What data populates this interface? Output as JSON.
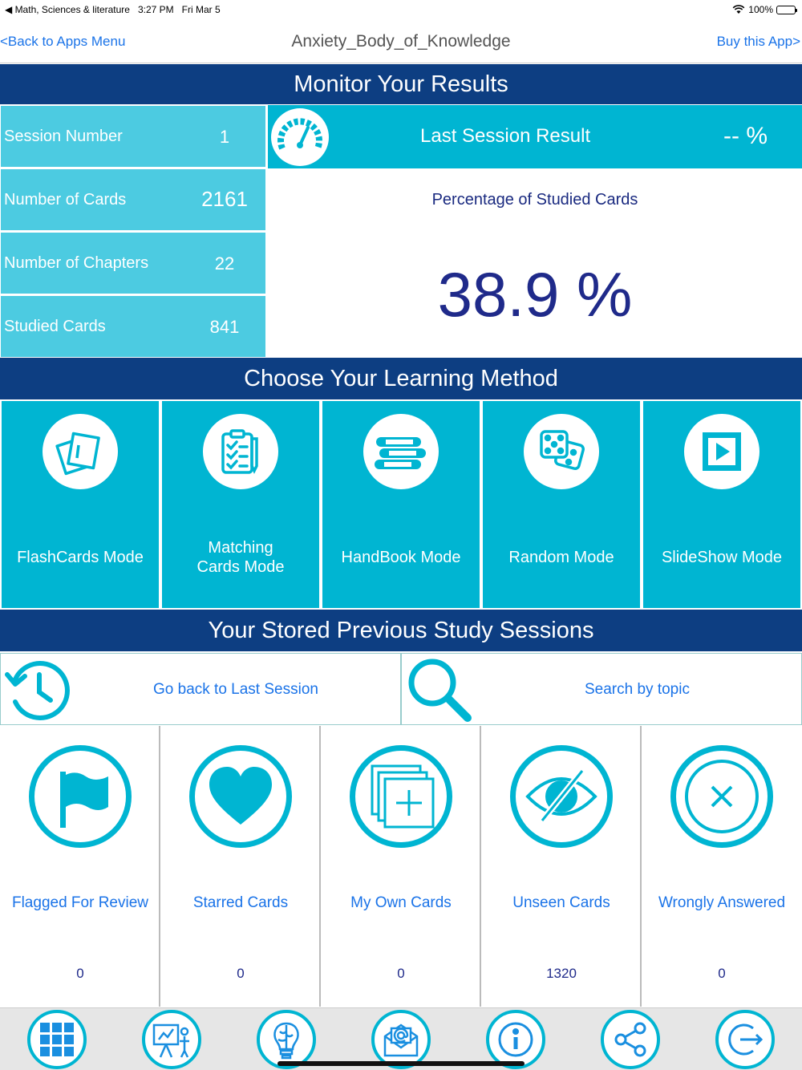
{
  "status_bar": {
    "back_app": "◀ Math, Sciences & literature",
    "time": "3:27 PM",
    "date": "Fri Mar 5",
    "battery": "100%"
  },
  "nav": {
    "back_label": "<Back to Apps Menu",
    "title": "Anxiety_Body_of_Knowledge",
    "buy_label": "Buy this App>"
  },
  "monitor": {
    "header": "Monitor Your Results",
    "stats": [
      {
        "label": "Session Number",
        "value": "1"
      },
      {
        "label": "Number of Cards",
        "value": "2161"
      },
      {
        "label": "Number of Chapters",
        "value": "22"
      },
      {
        "label": "Studied Cards",
        "value": "841"
      }
    ],
    "last_session": {
      "label": "Last Session Result",
      "value": "-- %"
    },
    "percentage": {
      "label": "Percentage of Studied Cards",
      "value": "38.9 %"
    }
  },
  "learning": {
    "header": "Choose Your Learning Method",
    "modes": [
      {
        "label": "FlashCards Mode",
        "icon": "flashcards-icon"
      },
      {
        "label": "Matching Cards Mode",
        "label_line1": "Matching",
        "label_line2": "Cards Mode",
        "icon": "clipboard-checklist-icon"
      },
      {
        "label": "HandBook Mode",
        "icon": "books-icon"
      },
      {
        "label": "Random Mode",
        "icon": "dice-icon"
      },
      {
        "label": "SlideShow Mode",
        "icon": "play-icon"
      }
    ]
  },
  "sessions": {
    "header": "Your Stored Previous Study Sessions",
    "go_back_label": "Go back to Last Session",
    "search_label": "Search by topic",
    "categories": [
      {
        "label": "Flagged For Review",
        "count": "0",
        "icon": "flag-icon"
      },
      {
        "label": "Starred Cards",
        "count": "0",
        "icon": "heart-icon"
      },
      {
        "label": "My Own Cards",
        "count": "0",
        "icon": "add-card-icon"
      },
      {
        "label": "Unseen Cards",
        "count": "1320",
        "icon": "eye-slash-icon"
      },
      {
        "label": "Wrongly Answered",
        "count": "0",
        "icon": "x-circle-icon"
      }
    ]
  },
  "toolbar": [
    "grid-icon",
    "presentation-icon",
    "brain-bulb-icon",
    "mail-icon",
    "info-icon",
    "share-icon",
    "exit-icon"
  ],
  "colors": {
    "header_bg": "#0d3e82",
    "tile_bg": "#00b5d2",
    "stat_bg": "#4ccbe1",
    "link": "#1a73e8",
    "dark_text": "#1f2a8a"
  }
}
